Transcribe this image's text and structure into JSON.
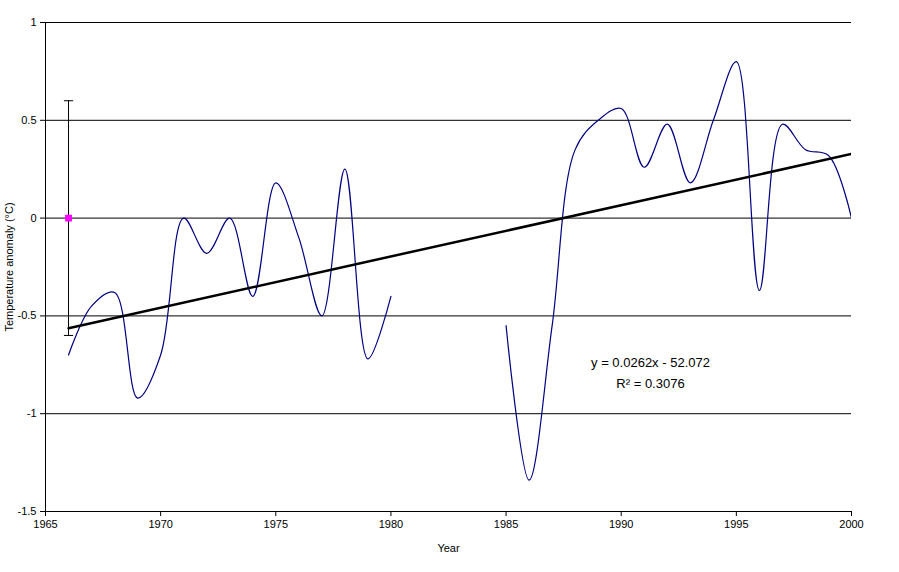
{
  "chart_data": {
    "type": "line",
    "x_label": "Year",
    "y_label": "Temperature anomaly (°C)",
    "xlim": [
      1965,
      2000
    ],
    "xticks": [
      1965,
      1970,
      1975,
      1980,
      1985,
      1990,
      1995,
      2000
    ],
    "ylim": [
      -1.5,
      1
    ],
    "yticks": [
      -1.5,
      -1,
      -0.5,
      0,
      0.5,
      1
    ],
    "grid": true,
    "x": [
      1966,
      1967,
      1968,
      1969,
      1970,
      1971,
      1972,
      1973,
      1974,
      1975,
      1976,
      1977,
      1978,
      1979,
      1980,
      1981,
      1982,
      1983,
      1984,
      1985,
      1986,
      1987,
      1988,
      1989,
      1990,
      1991,
      1992,
      1993,
      1994,
      1995,
      1996,
      1997,
      1998,
      1999,
      2000
    ],
    "series": [
      {
        "name": "Temperature anomaly",
        "color": "#000080",
        "line_style": "solid",
        "values": [
          -0.7,
          -0.45,
          -0.38,
          -0.92,
          -0.7,
          0.0,
          -0.18,
          0.0,
          -0.4,
          0.18,
          -0.1,
          -0.5,
          0.25,
          -0.72,
          -0.4,
          null,
          null,
          null,
          null,
          -0.55,
          -1.34,
          -0.55,
          0.35,
          0.5,
          0.56,
          0.26,
          0.48,
          0.18,
          0.5,
          0.8,
          -0.37,
          0.48,
          0.35,
          0.32,
          0.0
        ]
      }
    ],
    "trendline": {
      "color": "#000000",
      "x": [
        1966,
        2000
      ],
      "values": [
        -0.5628,
        0.328
      ]
    },
    "reference_point": {
      "x": 1966,
      "y": 0,
      "error": 0.6,
      "color": "#ff00ff",
      "marker": "square"
    },
    "annotations": [
      "y = 0.0262x - 52.072",
      "R² = 0.3076"
    ]
  }
}
